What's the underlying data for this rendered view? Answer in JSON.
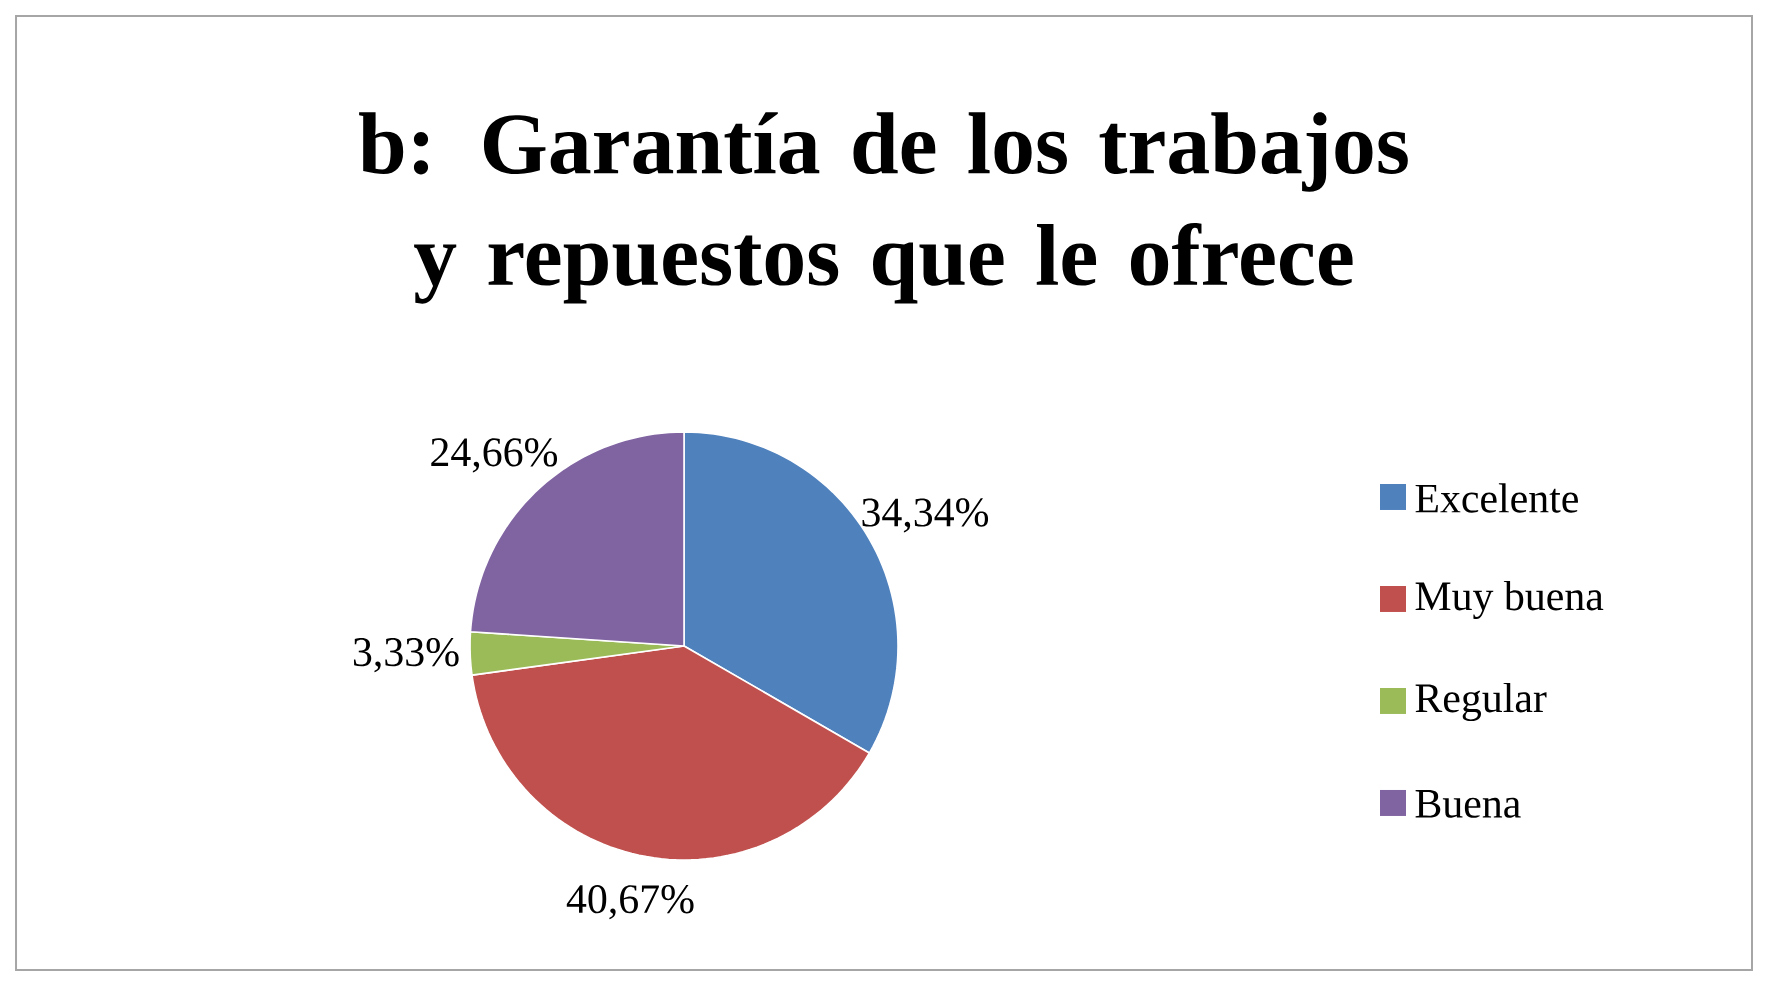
{
  "chart_data": {
    "type": "pie",
    "title": "b: Garantía de los trabajos y repuestos que le ofrece",
    "categories": [
      "Excelente",
      "Muy buena",
      "Regular",
      "Buena"
    ],
    "values": [
      34.34,
      40.67,
      3.33,
      24.66
    ],
    "value_labels": [
      "34,34%",
      "40,67%",
      "3,33%",
      "24,66%"
    ],
    "colors": [
      "#4f81bd",
      "#c0504d",
      "#9bbb59",
      "#8064a2"
    ],
    "legend": "right"
  }
}
